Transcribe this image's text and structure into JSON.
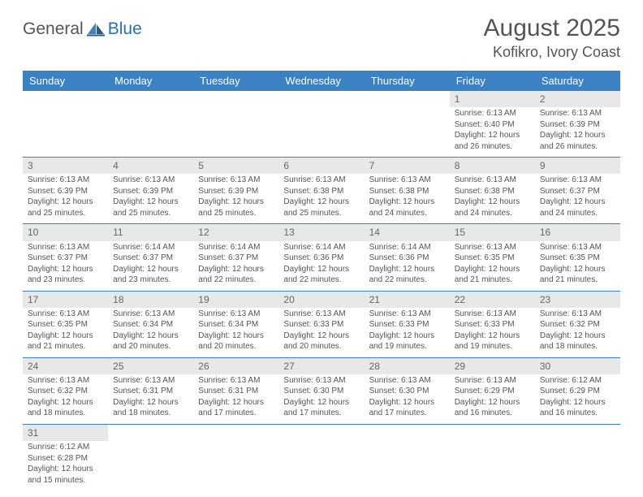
{
  "logo": {
    "text1": "General",
    "text2": "Blue"
  },
  "title": "August 2025",
  "location": "Kofikro, Ivory Coast",
  "header_color": "#3b82c4",
  "daynum_bg": "#e8e8e8",
  "text_color": "#555555",
  "weekdays": [
    "Sunday",
    "Monday",
    "Tuesday",
    "Wednesday",
    "Thursday",
    "Friday",
    "Saturday"
  ],
  "weeks": [
    [
      null,
      null,
      null,
      null,
      null,
      {
        "n": "1",
        "sr": "6:13 AM",
        "ss": "6:40 PM",
        "dl": "12 hours and 26 minutes."
      },
      {
        "n": "2",
        "sr": "6:13 AM",
        "ss": "6:39 PM",
        "dl": "12 hours and 26 minutes."
      }
    ],
    [
      {
        "n": "3",
        "sr": "6:13 AM",
        "ss": "6:39 PM",
        "dl": "12 hours and 25 minutes."
      },
      {
        "n": "4",
        "sr": "6:13 AM",
        "ss": "6:39 PM",
        "dl": "12 hours and 25 minutes."
      },
      {
        "n": "5",
        "sr": "6:13 AM",
        "ss": "6:39 PM",
        "dl": "12 hours and 25 minutes."
      },
      {
        "n": "6",
        "sr": "6:13 AM",
        "ss": "6:38 PM",
        "dl": "12 hours and 25 minutes."
      },
      {
        "n": "7",
        "sr": "6:13 AM",
        "ss": "6:38 PM",
        "dl": "12 hours and 24 minutes."
      },
      {
        "n": "8",
        "sr": "6:13 AM",
        "ss": "6:38 PM",
        "dl": "12 hours and 24 minutes."
      },
      {
        "n": "9",
        "sr": "6:13 AM",
        "ss": "6:37 PM",
        "dl": "12 hours and 24 minutes."
      }
    ],
    [
      {
        "n": "10",
        "sr": "6:13 AM",
        "ss": "6:37 PM",
        "dl": "12 hours and 23 minutes."
      },
      {
        "n": "11",
        "sr": "6:14 AM",
        "ss": "6:37 PM",
        "dl": "12 hours and 23 minutes."
      },
      {
        "n": "12",
        "sr": "6:14 AM",
        "ss": "6:37 PM",
        "dl": "12 hours and 22 minutes."
      },
      {
        "n": "13",
        "sr": "6:14 AM",
        "ss": "6:36 PM",
        "dl": "12 hours and 22 minutes."
      },
      {
        "n": "14",
        "sr": "6:14 AM",
        "ss": "6:36 PM",
        "dl": "12 hours and 22 minutes."
      },
      {
        "n": "15",
        "sr": "6:13 AM",
        "ss": "6:35 PM",
        "dl": "12 hours and 21 minutes."
      },
      {
        "n": "16",
        "sr": "6:13 AM",
        "ss": "6:35 PM",
        "dl": "12 hours and 21 minutes."
      }
    ],
    [
      {
        "n": "17",
        "sr": "6:13 AM",
        "ss": "6:35 PM",
        "dl": "12 hours and 21 minutes."
      },
      {
        "n": "18",
        "sr": "6:13 AM",
        "ss": "6:34 PM",
        "dl": "12 hours and 20 minutes."
      },
      {
        "n": "19",
        "sr": "6:13 AM",
        "ss": "6:34 PM",
        "dl": "12 hours and 20 minutes."
      },
      {
        "n": "20",
        "sr": "6:13 AM",
        "ss": "6:33 PM",
        "dl": "12 hours and 20 minutes."
      },
      {
        "n": "21",
        "sr": "6:13 AM",
        "ss": "6:33 PM",
        "dl": "12 hours and 19 minutes."
      },
      {
        "n": "22",
        "sr": "6:13 AM",
        "ss": "6:33 PM",
        "dl": "12 hours and 19 minutes."
      },
      {
        "n": "23",
        "sr": "6:13 AM",
        "ss": "6:32 PM",
        "dl": "12 hours and 18 minutes."
      }
    ],
    [
      {
        "n": "24",
        "sr": "6:13 AM",
        "ss": "6:32 PM",
        "dl": "12 hours and 18 minutes."
      },
      {
        "n": "25",
        "sr": "6:13 AM",
        "ss": "6:31 PM",
        "dl": "12 hours and 18 minutes."
      },
      {
        "n": "26",
        "sr": "6:13 AM",
        "ss": "6:31 PM",
        "dl": "12 hours and 17 minutes."
      },
      {
        "n": "27",
        "sr": "6:13 AM",
        "ss": "6:30 PM",
        "dl": "12 hours and 17 minutes."
      },
      {
        "n": "28",
        "sr": "6:13 AM",
        "ss": "6:30 PM",
        "dl": "12 hours and 17 minutes."
      },
      {
        "n": "29",
        "sr": "6:13 AM",
        "ss": "6:29 PM",
        "dl": "12 hours and 16 minutes."
      },
      {
        "n": "30",
        "sr": "6:12 AM",
        "ss": "6:29 PM",
        "dl": "12 hours and 16 minutes."
      }
    ],
    [
      {
        "n": "31",
        "sr": "6:12 AM",
        "ss": "6:28 PM",
        "dl": "12 hours and 15 minutes."
      },
      null,
      null,
      null,
      null,
      null,
      null
    ]
  ],
  "labels": {
    "sunrise": "Sunrise: ",
    "sunset": "Sunset: ",
    "daylight": "Daylight: "
  }
}
